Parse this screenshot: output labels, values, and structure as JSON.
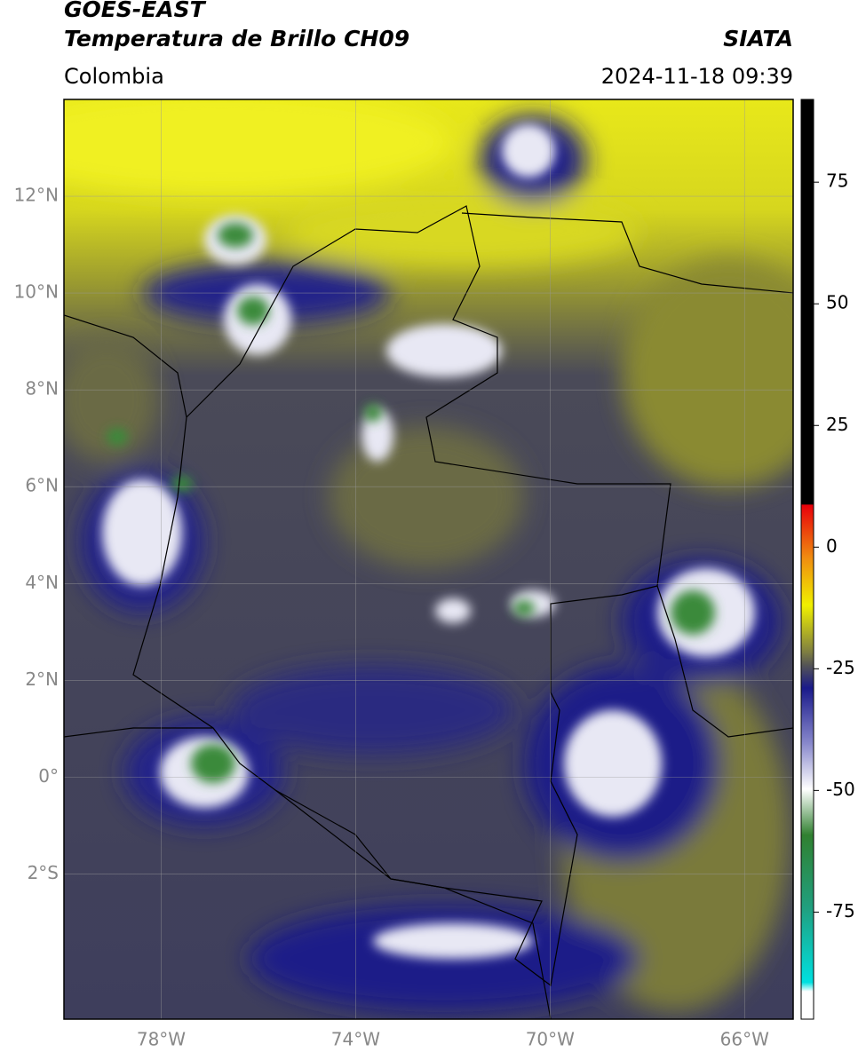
{
  "header": {
    "title": "GOES-EAST",
    "subtitle": "Temperatura de Brillo CH09",
    "source": "SIATA",
    "region": "Colombia",
    "datetime": "2024-11-18 09:39"
  },
  "map": {
    "lonlim": [
      -80,
      -65
    ],
    "latlim": [
      -5,
      14
    ],
    "lat_ticks": [
      {
        "value": 12,
        "label": "12°N"
      },
      {
        "value": 10,
        "label": "10°N"
      },
      {
        "value": 8,
        "label": "8°N"
      },
      {
        "value": 6,
        "label": "6°N"
      },
      {
        "value": 4,
        "label": "4°N"
      },
      {
        "value": 2,
        "label": "2°N"
      },
      {
        "value": 0,
        "label": "0°"
      },
      {
        "value": -2,
        "label": "2°S"
      }
    ],
    "lon_ticks": [
      {
        "value": -78,
        "label": "78°W"
      },
      {
        "value": -74,
        "label": "74°W"
      },
      {
        "value": -70,
        "label": "70°W"
      },
      {
        "value": -66,
        "label": "66°W"
      }
    ]
  },
  "colorbar": {
    "lim": [
      -97,
      92
    ],
    "ticks": [
      75,
      50,
      25,
      0,
      -25,
      -50,
      -75
    ]
  }
}
